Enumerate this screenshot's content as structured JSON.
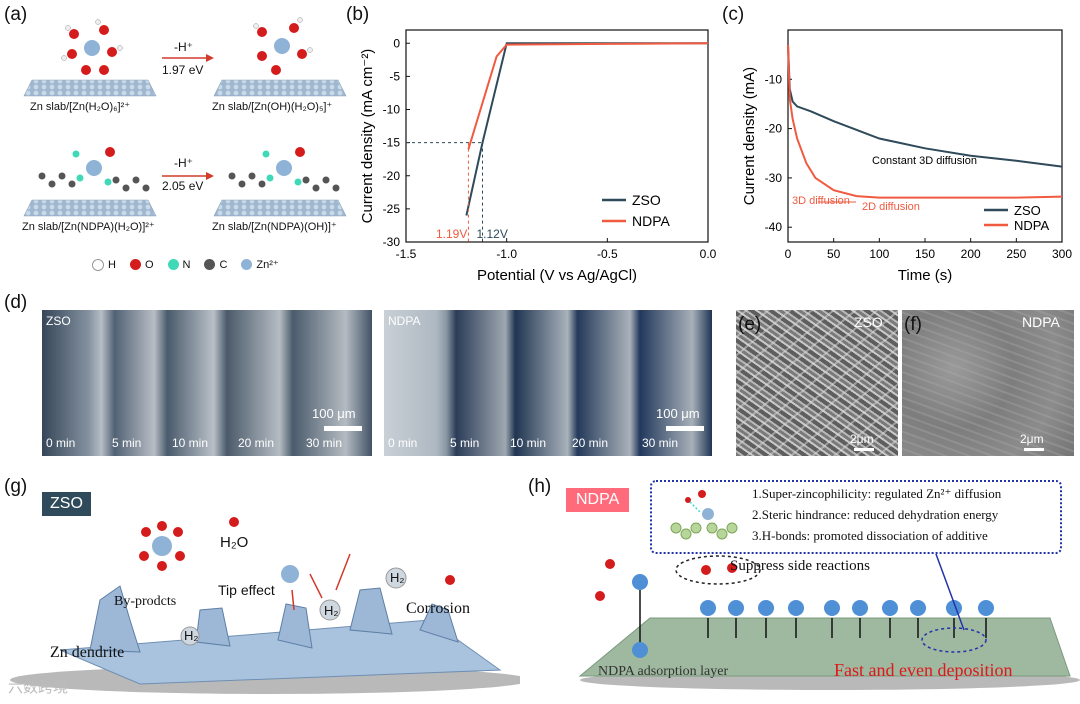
{
  "panels": {
    "a": "(a)",
    "b": "(b)",
    "c": "(c)",
    "d": "(d)",
    "e": "(e)",
    "f": "(f)",
    "g": "(g)",
    "h": "(h)"
  },
  "panel_a": {
    "arrow1_top": "-H⁺",
    "arrow1_energy": "1.97 eV",
    "arrow2_top": "-H⁺",
    "arrow2_energy": "2.05 eV",
    "cap_tl": "Zn slab/[Zn(H₂O)₆]²⁺",
    "cap_tr": "Zn slab/[Zn(OH)(H₂O)₅]⁺",
    "cap_bl": "Zn slab/[Zn(NDPA)(H₂O)]²⁺",
    "cap_br": "Zn slab/[Zn(NDPA)(OH)]⁺",
    "legend": [
      "H",
      "O",
      "N",
      "C",
      "Zn²⁺"
    ],
    "legend_colors": [
      "#f2f2f2",
      "#d41c1c",
      "#3fd9b8",
      "#555555",
      "#8fb3d6"
    ]
  },
  "chart_data": [
    {
      "type": "line",
      "panel": "b",
      "xlabel": "Potential (V vs Ag/AgCl)",
      "ylabel": "Current density (mA cm⁻²)",
      "xlim": [
        -1.5,
        0.0
      ],
      "ylim": [
        -30,
        2
      ],
      "xticks": [
        "-1.5",
        "-1.0",
        "-0.5",
        "0.0"
      ],
      "yticks": [
        "0",
        "-5",
        "-10",
        "-15",
        "-20",
        "-25",
        "-30"
      ],
      "series": [
        {
          "name": "ZSO",
          "color": "#2f4a5a",
          "x": [
            -1.2,
            -1.12,
            -1.0,
            -0.5,
            0.0
          ],
          "y": [
            -26,
            -15,
            0,
            0,
            0
          ]
        },
        {
          "name": "NDPA",
          "color": "#f05a40",
          "x": [
            -1.19,
            -1.05,
            -1.0,
            -0.5,
            0.0
          ],
          "y": [
            -16,
            -2,
            -0.2,
            -0.1,
            0
          ]
        }
      ],
      "annotations": [
        "1.19V",
        "1.12V"
      ],
      "guide_y": -15
    },
    {
      "type": "line",
      "panel": "c",
      "xlabel": "Time (s)",
      "ylabel": "Current density (mA)",
      "xlim": [
        0,
        300
      ],
      "ylim": [
        -43,
        0
      ],
      "xticks": [
        "0",
        "50",
        "100",
        "150",
        "200",
        "250",
        "300"
      ],
      "yticks": [
        "-10",
        "-20",
        "-30",
        "-40"
      ],
      "series": [
        {
          "name": "ZSO",
          "color": "#2f4a5a",
          "x": [
            0,
            2,
            5,
            10,
            25,
            50,
            100,
            150,
            200,
            250,
            300
          ],
          "y": [
            -3,
            -12,
            -14.5,
            -15.5,
            -16.5,
            -18.5,
            -22,
            -24,
            -25.5,
            -26.5,
            -27.7
          ]
        },
        {
          "name": "NDPA",
          "color": "#f05a40",
          "x": [
            0,
            2,
            5,
            10,
            20,
            30,
            50,
            75,
            100,
            150,
            200,
            250,
            300
          ],
          "y": [
            -3,
            -14,
            -18,
            -22,
            -27,
            -30,
            -32.5,
            -33.7,
            -34,
            -34,
            -34,
            -34,
            -33.8
          ]
        }
      ],
      "annotations": [
        "Constant 3D diffusion",
        "3D diffusion",
        "2D diffusion"
      ]
    }
  ],
  "panel_d": {
    "zso_label": "ZSO",
    "ndpa_label": "NDPA",
    "scale": "100 μm",
    "times": [
      "0 min",
      "5 min",
      "10 min",
      "20 min",
      "30 min"
    ]
  },
  "panel_e": {
    "label": "ZSO",
    "scale": "2μm"
  },
  "panel_f": {
    "label": "NDPA",
    "scale": "2μm"
  },
  "panel_g": {
    "badge": "ZSO",
    "h2o": "H₂O",
    "tip": "Tip effect",
    "h2_a": "H₂",
    "h2_b": "H₂",
    "h2_c": "H₂",
    "byproducts": "By-prodcts",
    "corrosion": "Corrosion",
    "dendrite": "Zn dendrite"
  },
  "panel_h": {
    "badge": "NDPA",
    "points": [
      "1.Super-zincophilicity: regulated Zn²⁺ diffusion",
      "2.Steric hindrance: reduced dehydration energy",
      "3.H-bonds: promoted dissociation of additive"
    ],
    "suppress": "Suppress side reactions",
    "layer": "NDPA adsorption layer",
    "deposit": "Fast and even deposition"
  },
  "watermark": "六数跨境"
}
